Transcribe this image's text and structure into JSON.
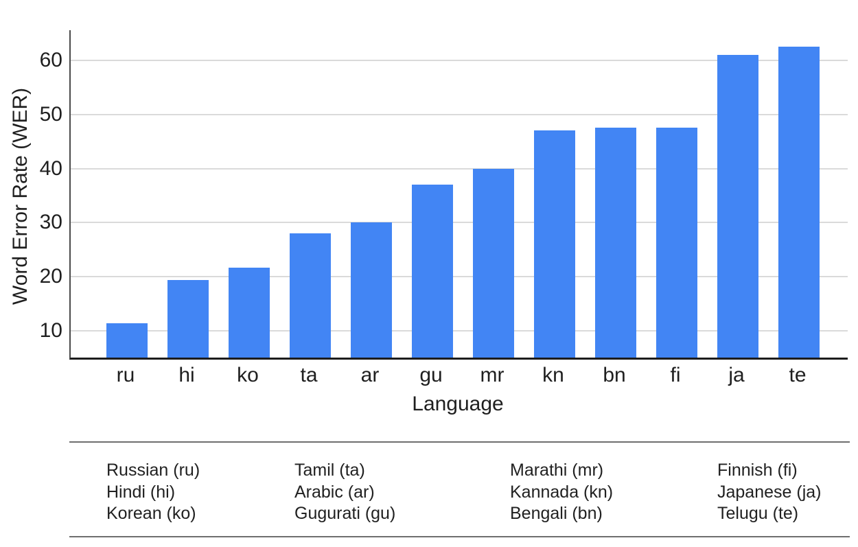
{
  "chart_data": {
    "type": "bar",
    "title": "",
    "xlabel": "Language",
    "ylabel": "Word Error Rate (WER)",
    "categories": [
      "ru",
      "hi",
      "ko",
      "ta",
      "ar",
      "gu",
      "mr",
      "kn",
      "bn",
      "fi",
      "ja",
      "te"
    ],
    "values": [
      11.4,
      19.3,
      21.6,
      28,
      30,
      37,
      40,
      47,
      47.5,
      47.5,
      61,
      62.5
    ],
    "yticks": [
      10,
      20,
      30,
      40,
      50,
      60
    ],
    "ylim": [
      5,
      65.6
    ],
    "grid": true,
    "legend_position": "bottom-table",
    "colors": {
      "bar": "#4285f4",
      "gridline": "#dadada",
      "y_axis_spine": "#4a4a4a",
      "x_axis_spine": "#1c1c1c",
      "text": "#1f1f1f",
      "legend_rule": "#6e6e6e"
    },
    "legend_columns": [
      [
        "Russian (ru)",
        "Hindi (hi)",
        "Korean (ko)"
      ],
      [
        "Tamil (ta)",
        "Arabic (ar)",
        "Gugurati (gu)"
      ],
      [
        "Marathi (mr)",
        "Kannada (kn)",
        "Bengali (bn)"
      ],
      [
        "Finnish (fi)",
        "Japanese (ja)",
        "Telugu (te)"
      ]
    ]
  }
}
